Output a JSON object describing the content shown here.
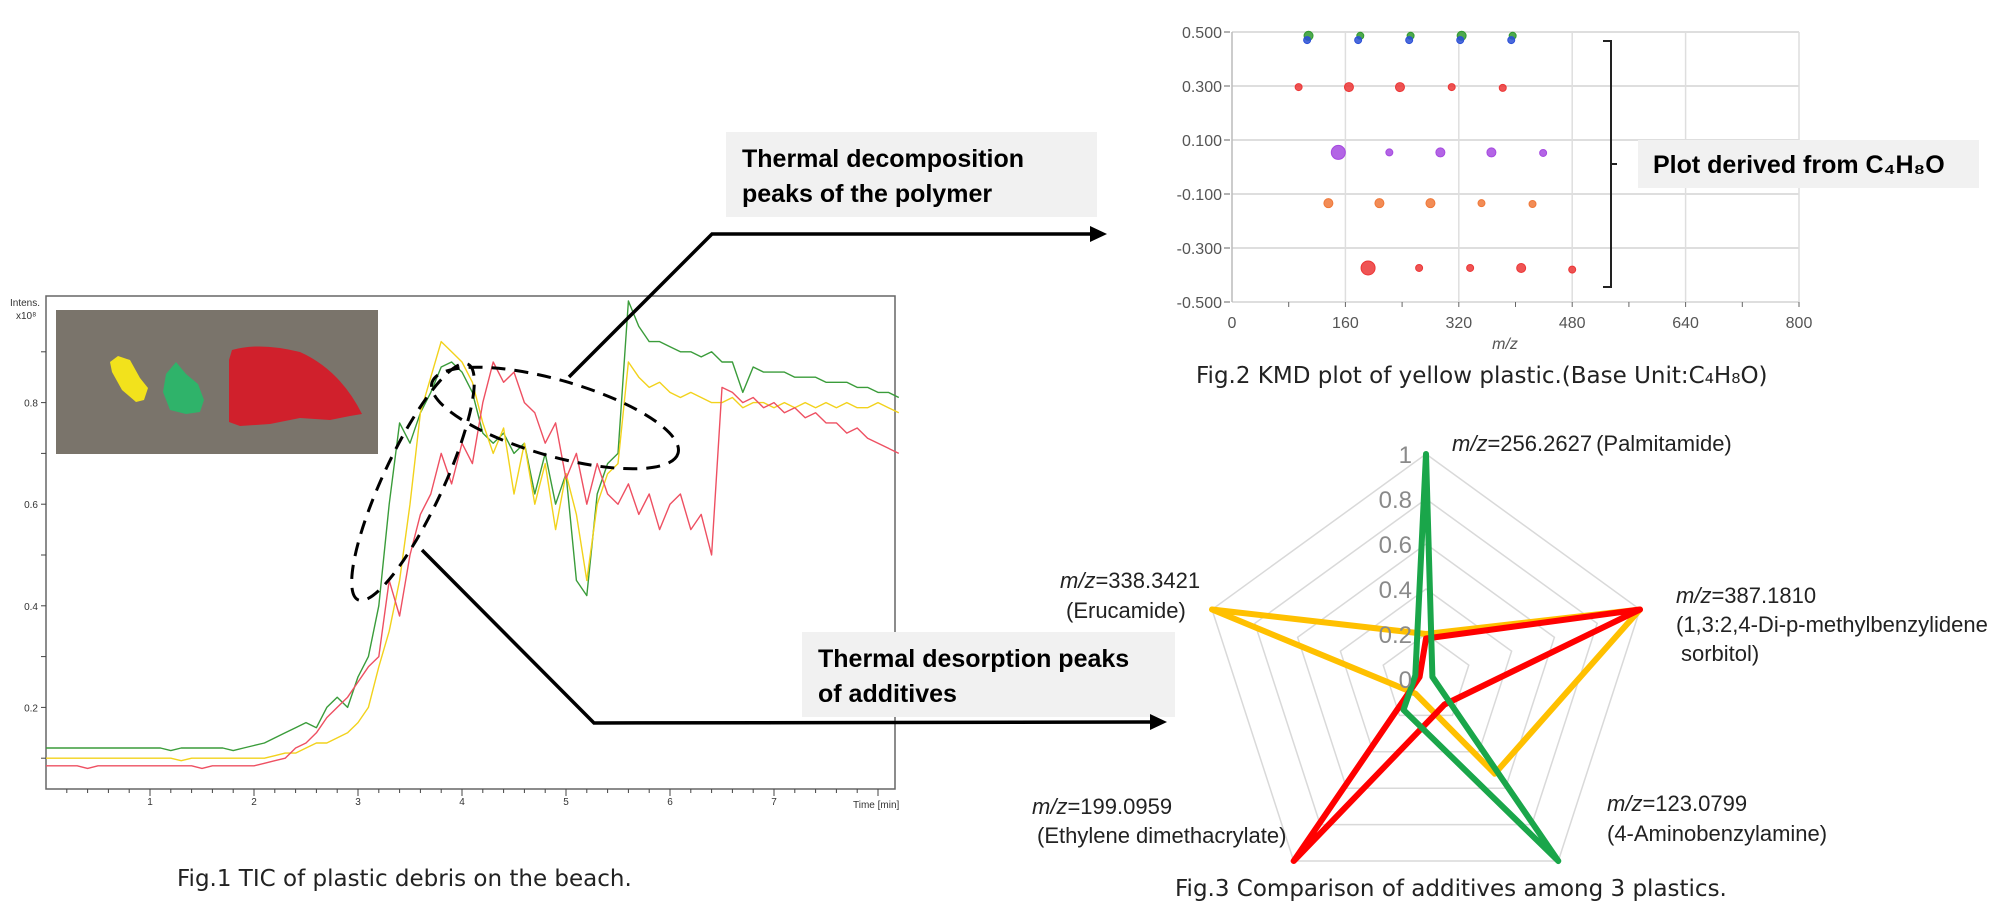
{
  "fig1": {
    "caption": "Fig.1 TIC of plastic debris on the beach.",
    "y_label_line1": "Intens.",
    "y_label_line2": "x10⁸",
    "x_label": "Time [min]",
    "photo_description_colors": {
      "background": "#7a746b",
      "yellow": "#f2e21c",
      "green": "#2fb36a",
      "red": "#d0202c"
    }
  },
  "annotations": {
    "polymer_label_line1": "Thermal decomposition",
    "polymer_label_line2": "peaks of the polymer",
    "additives_label_line1": "Thermal desorption peaks",
    "additives_label_line2": "of additives",
    "kmd_bracket_label": "Plot derived from C₄H₈O"
  },
  "fig2": {
    "caption": "Fig.2 KMD plot of yellow plastic.(Base Unit:C₄H₈O)",
    "x_label": "m/z"
  },
  "fig3": {
    "caption": "Fig.3 Comparison of additives among 3 plastics."
  },
  "chart_data": [
    {
      "type": "line",
      "title": "",
      "xlabel": "Time [min]",
      "ylabel": "Intens. x10^8",
      "xlim": [
        0,
        8.24
      ],
      "ylim": [
        0,
        0.97
      ],
      "x_ticks": [
        "1",
        "2",
        "3",
        "4",
        "5",
        "6",
        "7"
      ],
      "y_ticks": [
        "0.2",
        "0.4",
        "0.6",
        "0.8"
      ],
      "grid": false,
      "x": [
        0,
        0.1,
        0.2,
        0.3,
        0.4,
        0.5,
        0.6,
        0.7,
        0.8,
        0.9,
        1.0,
        1.1,
        1.2,
        1.3,
        1.4,
        1.5,
        1.6,
        1.7,
        1.8,
        1.9,
        2.0,
        2.1,
        2.2,
        2.3,
        2.4,
        2.5,
        2.6,
        2.7,
        2.8,
        2.9,
        3.0,
        3.1,
        3.2,
        3.3,
        3.4,
        3.5,
        3.6,
        3.7,
        3.8,
        3.9,
        4.0,
        4.1,
        4.2,
        4.3,
        4.4,
        4.5,
        4.6,
        4.7,
        4.8,
        4.9,
        5.0,
        5.1,
        5.2,
        5.3,
        5.4,
        5.5,
        5.6,
        5.7,
        5.8,
        5.9,
        6.0,
        6.1,
        6.2,
        6.3,
        6.4,
        6.5,
        6.6,
        6.7,
        6.8,
        6.9,
        7.0,
        7.1,
        7.2,
        7.3,
        7.4,
        7.5,
        7.6,
        7.7,
        7.8,
        7.9,
        8.0,
        8.1,
        8.2
      ],
      "series": [
        {
          "color": "#3a9c3a",
          "values": [
            0.12,
            0.12,
            0.12,
            0.12,
            0.12,
            0.12,
            0.12,
            0.12,
            0.12,
            0.12,
            0.12,
            0.12,
            0.115,
            0.12,
            0.12,
            0.12,
            0.12,
            0.12,
            0.115,
            0.12,
            0.125,
            0.13,
            0.14,
            0.15,
            0.16,
            0.17,
            0.16,
            0.2,
            0.22,
            0.2,
            0.26,
            0.3,
            0.4,
            0.6,
            0.76,
            0.72,
            0.78,
            0.82,
            0.87,
            0.88,
            0.86,
            0.82,
            0.74,
            0.72,
            0.74,
            0.7,
            0.72,
            0.62,
            0.7,
            0.6,
            0.66,
            0.45,
            0.42,
            0.62,
            0.68,
            0.7,
            1.0,
            0.95,
            0.92,
            0.92,
            0.91,
            0.9,
            0.9,
            0.89,
            0.9,
            0.88,
            0.88,
            0.82,
            0.87,
            0.86,
            0.86,
            0.86,
            0.85,
            0.85,
            0.85,
            0.84,
            0.84,
            0.84,
            0.83,
            0.83,
            0.82,
            0.82,
            0.81
          ]
        },
        {
          "color": "#f2d21c",
          "values": [
            0.1,
            0.1,
            0.1,
            0.1,
            0.1,
            0.1,
            0.1,
            0.1,
            0.1,
            0.1,
            0.1,
            0.1,
            0.1,
            0.095,
            0.1,
            0.1,
            0.1,
            0.1,
            0.1,
            0.1,
            0.1,
            0.1,
            0.105,
            0.11,
            0.11,
            0.12,
            0.13,
            0.13,
            0.14,
            0.15,
            0.17,
            0.2,
            0.28,
            0.35,
            0.45,
            0.6,
            0.78,
            0.85,
            0.92,
            0.9,
            0.88,
            0.84,
            0.76,
            0.7,
            0.75,
            0.62,
            0.72,
            0.6,
            0.68,
            0.55,
            0.66,
            0.58,
            0.45,
            0.6,
            0.66,
            0.68,
            0.88,
            0.85,
            0.83,
            0.84,
            0.82,
            0.81,
            0.82,
            0.81,
            0.8,
            0.8,
            0.81,
            0.79,
            0.8,
            0.8,
            0.79,
            0.8,
            0.79,
            0.8,
            0.79,
            0.8,
            0.79,
            0.8,
            0.79,
            0.79,
            0.8,
            0.79,
            0.78
          ]
        },
        {
          "color": "#ee5062",
          "values": [
            0.085,
            0.085,
            0.085,
            0.085,
            0.08,
            0.085,
            0.085,
            0.085,
            0.085,
            0.085,
            0.085,
            0.085,
            0.085,
            0.085,
            0.085,
            0.08,
            0.085,
            0.085,
            0.085,
            0.085,
            0.085,
            0.09,
            0.095,
            0.1,
            0.12,
            0.13,
            0.15,
            0.18,
            0.2,
            0.22,
            0.25,
            0.28,
            0.3,
            0.45,
            0.38,
            0.5,
            0.58,
            0.62,
            0.7,
            0.64,
            0.72,
            0.68,
            0.8,
            0.88,
            0.84,
            0.86,
            0.8,
            0.78,
            0.72,
            0.76,
            0.65,
            0.7,
            0.6,
            0.68,
            0.62,
            0.6,
            0.64,
            0.58,
            0.62,
            0.55,
            0.6,
            0.62,
            0.55,
            0.58,
            0.5,
            0.83,
            0.82,
            0.8,
            0.81,
            0.79,
            0.8,
            0.78,
            0.79,
            0.77,
            0.78,
            0.76,
            0.76,
            0.74,
            0.75,
            0.73,
            0.72,
            0.71,
            0.7
          ]
        }
      ]
    },
    {
      "type": "scatter",
      "title": "",
      "xlabel": "m/z",
      "ylabel": "",
      "xlim": [
        0,
        800
      ],
      "ylim": [
        -0.5,
        0.5
      ],
      "x_ticks": [
        "0",
        "160",
        "320",
        "480",
        "640",
        "800"
      ],
      "y_ticks": [
        "0.500",
        "0.300",
        "0.100",
        "-0.100",
        "-0.300",
        "-0.500"
      ],
      "grid": true,
      "series": [
        {
          "color": "#2f9a2f",
          "points": [
            [
              108,
              0.486
            ],
            [
              181,
              0.486
            ],
            [
              252,
              0.486
            ],
            [
              324,
              0.486
            ],
            [
              396,
              0.486
            ]
          ],
          "sizes": [
            "m",
            "s",
            "s",
            "m",
            "s"
          ]
        },
        {
          "color": "#2a4fd6",
          "points": [
            [
              106,
              0.47
            ],
            [
              178,
              0.47
            ],
            [
              250,
              0.47
            ],
            [
              322,
              0.47
            ],
            [
              394,
              0.47
            ]
          ],
          "sizes": [
            "s",
            "s",
            "s",
            "s",
            "s"
          ]
        },
        {
          "color": "#ec3636",
          "points": [
            [
              94,
              0.296
            ],
            [
              165,
              0.296
            ],
            [
              237,
              0.296
            ],
            [
              310,
              0.296
            ],
            [
              382,
              0.293
            ]
          ],
          "sizes": [
            "s",
            "m",
            "m",
            "s",
            "s"
          ]
        },
        {
          "color": "#a64ae0",
          "points": [
            [
              150,
              0.054
            ],
            [
              222,
              0.054
            ],
            [
              294,
              0.054
            ],
            [
              366,
              0.054
            ],
            [
              439,
              0.052
            ]
          ],
          "sizes": [
            "l",
            "s",
            "m",
            "m",
            "s"
          ]
        },
        {
          "color": "#f07838",
          "points": [
            [
              136,
              -0.134
            ],
            [
              208,
              -0.134
            ],
            [
              280,
              -0.134
            ],
            [
              352,
              -0.134
            ],
            [
              424,
              -0.137
            ]
          ],
          "sizes": [
            "m",
            "m",
            "m",
            "s",
            "s"
          ]
        },
        {
          "color": "#ec3636",
          "points": [
            [
              192,
              -0.374
            ],
            [
              264,
              -0.374
            ],
            [
              336,
              -0.374
            ],
            [
              408,
              -0.374
            ],
            [
              480,
              -0.38
            ]
          ],
          "sizes": [
            "l",
            "s",
            "s",
            "m",
            "s"
          ]
        }
      ]
    },
    {
      "type": "radar",
      "title": "",
      "rlim": [
        0,
        1
      ],
      "r_ticks": [
        "0",
        "0.2",
        "0.4",
        "0.6",
        "0.8",
        "1"
      ],
      "axes": [
        {
          "prefix": "m/z",
          "value": "=256.2627",
          "name": "(Palmitamide)"
        },
        {
          "prefix": "m/z",
          "value": "=387.1810",
          "name": "(1,3:2,4-Di-p-methylbenzylidene",
          "name2": "sorbitol)"
        },
        {
          "prefix": "m/z",
          "value": "=123.0799",
          "name": "(4-Aminobenzylamine)"
        },
        {
          "prefix": "m/z",
          "value": "=199.0959",
          "name": "(Ethylene dimethacrylate)"
        },
        {
          "prefix": "m/z",
          "value": "=338.3421",
          "name": "(Erucamide)"
        }
      ],
      "series": [
        {
          "color": "#ffc000",
          "values": [
            0.2,
            1.0,
            0.52,
            0.08,
            1.0
          ]
        },
        {
          "color": "#ff0000",
          "values": [
            0.18,
            1.0,
            0.14,
            1.0,
            0.03
          ]
        },
        {
          "color": "#1aa64a",
          "values": [
            1.0,
            0.03,
            1.0,
            0.17,
            0.05
          ]
        }
      ]
    }
  ]
}
